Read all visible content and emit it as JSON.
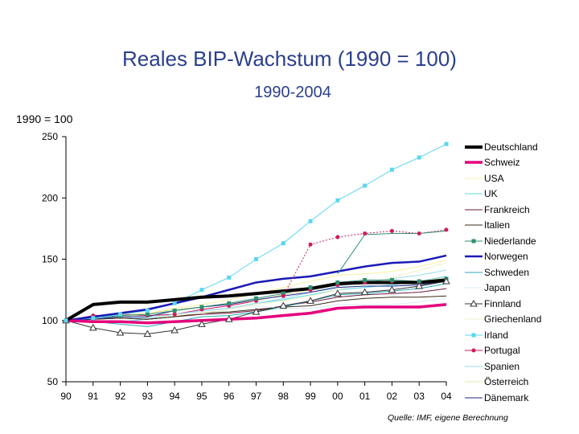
{
  "page": {
    "title": "Reales BIP-Wachstum (1990 = 100)",
    "subtitle": "1990-2004",
    "unit_label": "1990 = 100",
    "source": "Quelle: IMF, eigene Berechnung"
  },
  "chart_data": {
    "type": "line",
    "title": "Reales BIP-Wachstum (1990 = 100)",
    "subtitle": "1990-2004",
    "ylabel": "1990 = 100",
    "xlabel": "",
    "ylim": [
      50,
      250
    ],
    "yticks": [
      50,
      100,
      150,
      200,
      250
    ],
    "x": [
      "90",
      "91",
      "92",
      "93",
      "94",
      "95",
      "96",
      "97",
      "98",
      "99",
      "00",
      "01",
      "02",
      "03",
      "04"
    ],
    "legend_position": "right",
    "grid": false,
    "series": [
      {
        "name": "Deutschland",
        "color": "#000000",
        "width": 4,
        "marker": "none",
        "values": [
          100,
          113,
          115,
          115,
          117,
          119,
          120,
          122,
          124,
          126,
          130,
          131,
          131,
          131,
          133
        ]
      },
      {
        "name": "Schweiz",
        "color": "#e4007c",
        "width": 3.5,
        "marker": "none",
        "values": [
          100,
          99,
          99,
          98,
          99,
          100,
          101,
          102,
          104,
          106,
          110,
          111,
          111,
          111,
          113
        ]
      },
      {
        "name": "USA",
        "color": "#f5f0a0",
        "width": 1,
        "marker": "none",
        "values": [
          100,
          100,
          103,
          106,
          110,
          113,
          117,
          122,
          127,
          132,
          137,
          138,
          140,
          144,
          149
        ]
      },
      {
        "name": "UK",
        "color": "#5ed4e8",
        "width": 1,
        "marker": "none",
        "values": [
          100,
          99,
          99,
          101,
          105,
          108,
          110,
          114,
          117,
          121,
          125,
          127,
          129,
          132,
          136
        ]
      },
      {
        "name": "Frankreich",
        "color": "#6b1a3a",
        "width": 1,
        "marker": "none",
        "values": [
          100,
          101,
          102,
          101,
          103,
          105,
          106,
          108,
          112,
          115,
          119,
          121,
          122,
          123,
          126
        ]
      },
      {
        "name": "Italien",
        "color": "#3a2a1a",
        "width": 1,
        "marker": "none",
        "values": [
          100,
          101,
          102,
          101,
          103,
          106,
          107,
          109,
          111,
          112,
          116,
          118,
          119,
          119,
          120
        ]
      },
      {
        "name": "Niederlande",
        "color": "#2f8f6f",
        "width": 1,
        "marker": "square",
        "values": [
          100,
          102,
          104,
          105,
          108,
          111,
          114,
          118,
          122,
          127,
          131,
          133,
          133,
          132,
          134
        ]
      },
      {
        "name": "Norwegen",
        "color": "#1a1ab8",
        "width": 2.5,
        "marker": "none",
        "values": [
          100,
          103,
          106,
          109,
          114,
          119,
          125,
          131,
          134,
          136,
          140,
          144,
          147,
          148,
          153
        ]
      },
      {
        "name": "Schweden",
        "color": "#2aa7b8",
        "width": 1,
        "marker": "none",
        "values": [
          100,
          99,
          97,
          95,
          99,
          103,
          104,
          107,
          111,
          116,
          121,
          122,
          124,
          126,
          130
        ]
      },
      {
        "name": "Japan",
        "color": "#d8eef8",
        "width": 1,
        "marker": "none",
        "values": [
          100,
          103,
          104,
          104,
          105,
          107,
          110,
          112,
          110,
          110,
          113,
          113,
          113,
          115,
          118
        ]
      },
      {
        "name": "Finnland",
        "color": "#333333",
        "width": 1,
        "marker": "triangle",
        "values": [
          100,
          94,
          90,
          89,
          92,
          97,
          101,
          107,
          112,
          116,
          122,
          123,
          125,
          128,
          132
        ]
      },
      {
        "name": "Griechenland",
        "color": "#f0f0c0",
        "width": 1,
        "marker": "none",
        "values": [
          100,
          103,
          104,
          102,
          104,
          106,
          109,
          113,
          116,
          120,
          125,
          130,
          135,
          141,
          147
        ]
      },
      {
        "name": "Irland",
        "color": "#5ad7ee",
        "width": 1,
        "marker": "square",
        "values": [
          100,
          102,
          105,
          108,
          114,
          125,
          135,
          150,
          163,
          181,
          198,
          210,
          223,
          233,
          244
        ]
      },
      {
        "name": "Portugal",
        "color": "#d11a5a",
        "width": 1,
        "marker": "circle",
        "values": [
          100,
          104,
          105,
          104,
          105,
          109,
          112,
          116,
          121,
          125,
          129,
          131,
          132,
          131,
          132
        ]
      },
      {
        "name": "Spanien",
        "color": "#9adbe8",
        "width": 1,
        "marker": "none",
        "values": [
          100,
          102,
          103,
          102,
          105,
          108,
          110,
          114,
          118,
          123,
          128,
          131,
          134,
          137,
          141
        ]
      },
      {
        "name": "Österreich",
        "color": "#eaeaa8",
        "width": 1,
        "marker": "none",
        "values": [
          100,
          103,
          105,
          106,
          109,
          111,
          114,
          116,
          121,
          125,
          129,
          130,
          131,
          132,
          135
        ]
      },
      {
        "name": "Dänemark",
        "color": "#1a2a8a",
        "width": 1,
        "marker": "none",
        "values": [
          100,
          101,
          103,
          103,
          108,
          111,
          113,
          117,
          120,
          123,
          127,
          128,
          128,
          129,
          132
        ]
      }
    ],
    "overlay_series": [
      {
        "name": "Portugal (dotted)",
        "color": "#d11a5a",
        "width": 1,
        "dash": "2,2",
        "marker": "circle",
        "values": [
          null,
          null,
          null,
          null,
          null,
          null,
          null,
          null,
          120,
          162,
          168,
          171,
          173,
          171,
          174
        ]
      },
      {
        "name": "Niederlande (upper)",
        "color": "#2f8f6f",
        "width": 1,
        "marker": "none",
        "values": [
          null,
          null,
          null,
          null,
          null,
          null,
          null,
          null,
          null,
          null,
          138,
          170,
          171,
          171,
          173
        ]
      }
    ]
  }
}
